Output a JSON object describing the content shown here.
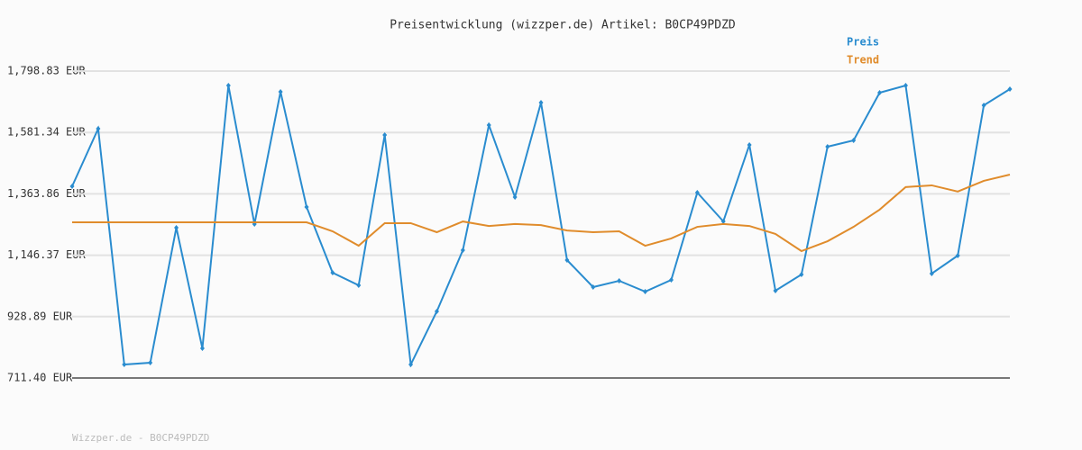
{
  "chart_data": {
    "type": "line",
    "title": "Preisentwicklung (wizzper.de) Artikel: B0CP49PDZD",
    "footer": "Wizzper.de - B0CP49PDZD",
    "categories": [
      null,
      null,
      null,
      null,
      null,
      null,
      null,
      null,
      null,
      null,
      null,
      null,
      null,
      null,
      null,
      null,
      null,
      null,
      null,
      null,
      null,
      null,
      null,
      null,
      null,
      null,
      null,
      null,
      null,
      null,
      null,
      null,
      null,
      null,
      null,
      null,
      null
    ],
    "series": [
      {
        "name": "Preis",
        "color": "#2a8ccf",
        "markers": true,
        "values": [
          1390.7,
          1594.8,
          759.2,
          765.6,
          1244.0,
          816.6,
          1747.8,
          1256.7,
          1725.5,
          1317.3,
          1084.5,
          1039.9,
          1572.4,
          759.2,
          947.4,
          1164.2,
          1607.5,
          1352.4,
          1687.2,
          1129.2,
          1033.5,
          1055.8,
          1017.5,
          1059.0,
          1368.3,
          1266.3,
          1537.4,
          1020.7,
          1078.1,
          1531.0,
          1553.3,
          1722.3,
          1747.8,
          1081.3,
          1145.1,
          1677.7,
          1735.1
        ]
      },
      {
        "name": "Trend",
        "color": "#e08c2c",
        "markers": false,
        "values": [
          1263.1,
          1263.1,
          1263.1,
          1263.1,
          1263.1,
          1263.1,
          1263.1,
          1263.1,
          1263.1,
          1263.1,
          1231.2,
          1180.2,
          1260,
          1260,
          1228,
          1266,
          1250,
          1257,
          1253,
          1234,
          1228,
          1231,
          1180,
          1206,
          1247,
          1257,
          1250,
          1222,
          1161,
          1196,
          1247,
          1308,
          1388,
          1394,
          1372,
          1410,
          1432
        ]
      }
    ],
    "ylim": [
      711.4,
      1798.83
    ],
    "yticks": [
      {
        "value": 711.4,
        "label": "711.40 EUR"
      },
      {
        "value": 928.89,
        "label": "928.89 EUR"
      },
      {
        "value": 1146.37,
        "label": "1,146.37 EUR"
      },
      {
        "value": 1363.86,
        "label": "1,363.86 EUR"
      },
      {
        "value": 1581.34,
        "label": "1,581.34 EUR"
      },
      {
        "value": 1798.83,
        "label": "1,798.83 EUR"
      }
    ],
    "grid": true
  }
}
